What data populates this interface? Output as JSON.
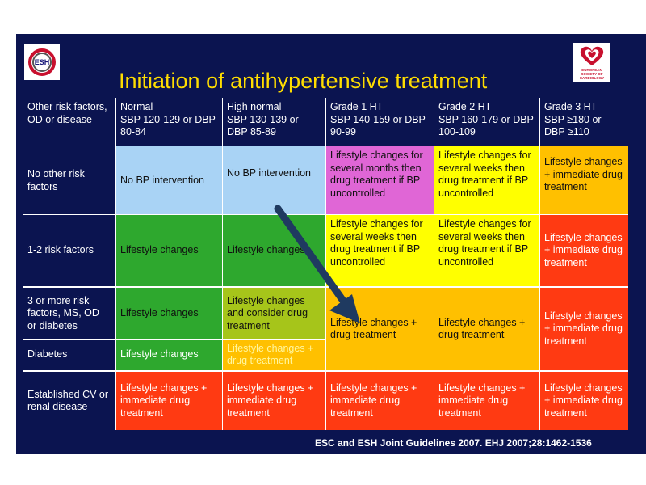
{
  "title": "Initiation of antihypertensive treatment",
  "logos": {
    "esh_icon": "esh-logo",
    "esc_icon": "heart-logo",
    "esc_caption": "EUROPEAN SOCIETY OF CARDIOLOGY"
  },
  "columns": [
    {
      "heading": "Other risk factors, OD or disease",
      "sub": ""
    },
    {
      "heading": "Normal",
      "sub": "SBP 120-129 or DBP 80-84"
    },
    {
      "heading": "High normal",
      "sub": "SBP 130-139 or DBP 85-89"
    },
    {
      "heading": "Grade 1 HT",
      "sub": "SBP 140-159 or DBP 90-99"
    },
    {
      "heading": "Grade 2 HT",
      "sub": "SBP 160-179 or DBP 100-109"
    },
    {
      "heading": "Grade 3 HT",
      "sub": "SBP ≥180 or DBP ≥110"
    }
  ],
  "rows": [
    {
      "label": "No other risk factors",
      "cells": [
        "No BP intervention",
        "No BP intervention",
        "Lifestyle changes for several months then drug treatment if BP uncontrolled",
        "Lifestyle changes for several weeks then drug treatment if BP uncontrolled",
        "Lifestyle changes + immediate drug treatment"
      ]
    },
    {
      "label": "1-2 risk factors",
      "cells": [
        "Lifestyle changes",
        "Lifestyle changes",
        "Lifestyle changes for several weeks then drug treatment if BP uncontrolled",
        "Lifestyle changes for several weeks then drug treatment if BP uncontrolled",
        "Lifestyle changes + immediate drug treatment"
      ]
    },
    {
      "label": "3 or more risk factors, MS, OD or diabetes",
      "cells": [
        "Lifestyle changes",
        "Lifestyle changes and consider drug treatment",
        "Lifestyle changes + drug treatment",
        "Lifestyle changes + drug treatment",
        "Lifestyle changes + immediate drug treatment"
      ]
    },
    {
      "label": "Diabetes",
      "cells": [
        "Lifestyle changes",
        "Lifestyle changes + drug treatment"
      ]
    },
    {
      "label": "Established CV or renal disease",
      "cells": [
        "Lifestyle changes + immediate drug treatment",
        "Lifestyle changes + immediate drug treatment",
        "Lifestyle changes + immediate drug treatment",
        "Lifestyle changes + immediate drug treatment",
        "Lifestyle changes + immediate drug treatment"
      ]
    }
  ],
  "colors": {
    "background": "#0b1450",
    "title": "#ffdd00",
    "light_blue": "#a9d3f5",
    "magenta": "#e066d6",
    "yellow": "#ffff00",
    "orange": "#ffc000",
    "red": "#ff3a12",
    "green": "#2ea82e",
    "green_yellow": "#a6c51a",
    "arrow": "#1f3a60"
  },
  "footer": "ESC and ESH Joint Guidelines 2007. EHJ 2007;28:1462-1536"
}
